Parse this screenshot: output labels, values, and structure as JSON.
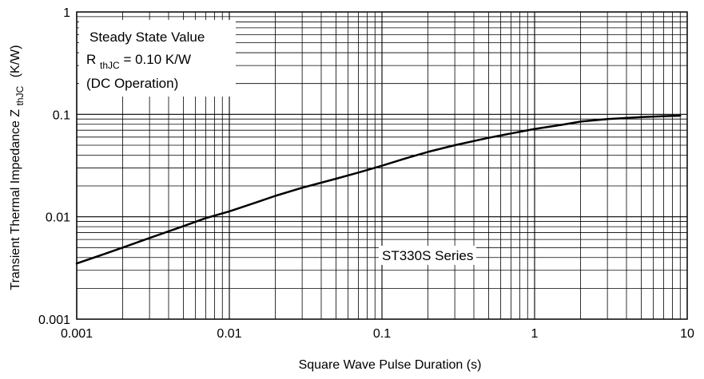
{
  "chart_data": {
    "type": "line",
    "x_scale": "log",
    "y_scale": "log",
    "xlim": [
      0.001,
      10
    ],
    "ylim": [
      0.001,
      1
    ],
    "grid": true,
    "xlabel": "Square Wave Pulse Duration (s)",
    "ylabel": {
      "main": "Transient Thermal Impedance Z",
      "sub": "thJC",
      "unit": "(K/W)"
    },
    "x_ticks": [
      {
        "value": 0.001,
        "label": "0.001"
      },
      {
        "value": 0.01,
        "label": "0.01"
      },
      {
        "value": 0.1,
        "label": "0.1"
      },
      {
        "value": 1,
        "label": "1"
      },
      {
        "value": 10,
        "label": "10"
      }
    ],
    "y_ticks": [
      {
        "value": 0.001,
        "label": "0.001"
      },
      {
        "value": 0.01,
        "label": "0.01"
      },
      {
        "value": 0.1,
        "label": "0.1"
      },
      {
        "value": 1,
        "label": "1"
      }
    ],
    "annotations": {
      "line1": "Steady State Value",
      "line2_main": "R",
      "line2_sub": "thJC",
      "line2_rest": " = 0.10 K/W",
      "line3": "(DC Operation)",
      "series_label": "ST330S Series"
    },
    "series": [
      {
        "x": [
          0.001,
          0.0015,
          0.002,
          0.003,
          0.005,
          0.007,
          0.01,
          0.015,
          0.02,
          0.03,
          0.05,
          0.07,
          0.1,
          0.15,
          0.2,
          0.3,
          0.5,
          0.7,
          1,
          1.5,
          2,
          3,
          5,
          7,
          9
        ],
        "values": [
          0.0035,
          0.0043,
          0.005,
          0.0062,
          0.0081,
          0.0097,
          0.0113,
          0.0138,
          0.016,
          0.0192,
          0.0235,
          0.027,
          0.0315,
          0.038,
          0.043,
          0.05,
          0.059,
          0.065,
          0.072,
          0.079,
          0.085,
          0.09,
          0.094,
          0.096,
          0.097
        ]
      }
    ]
  }
}
